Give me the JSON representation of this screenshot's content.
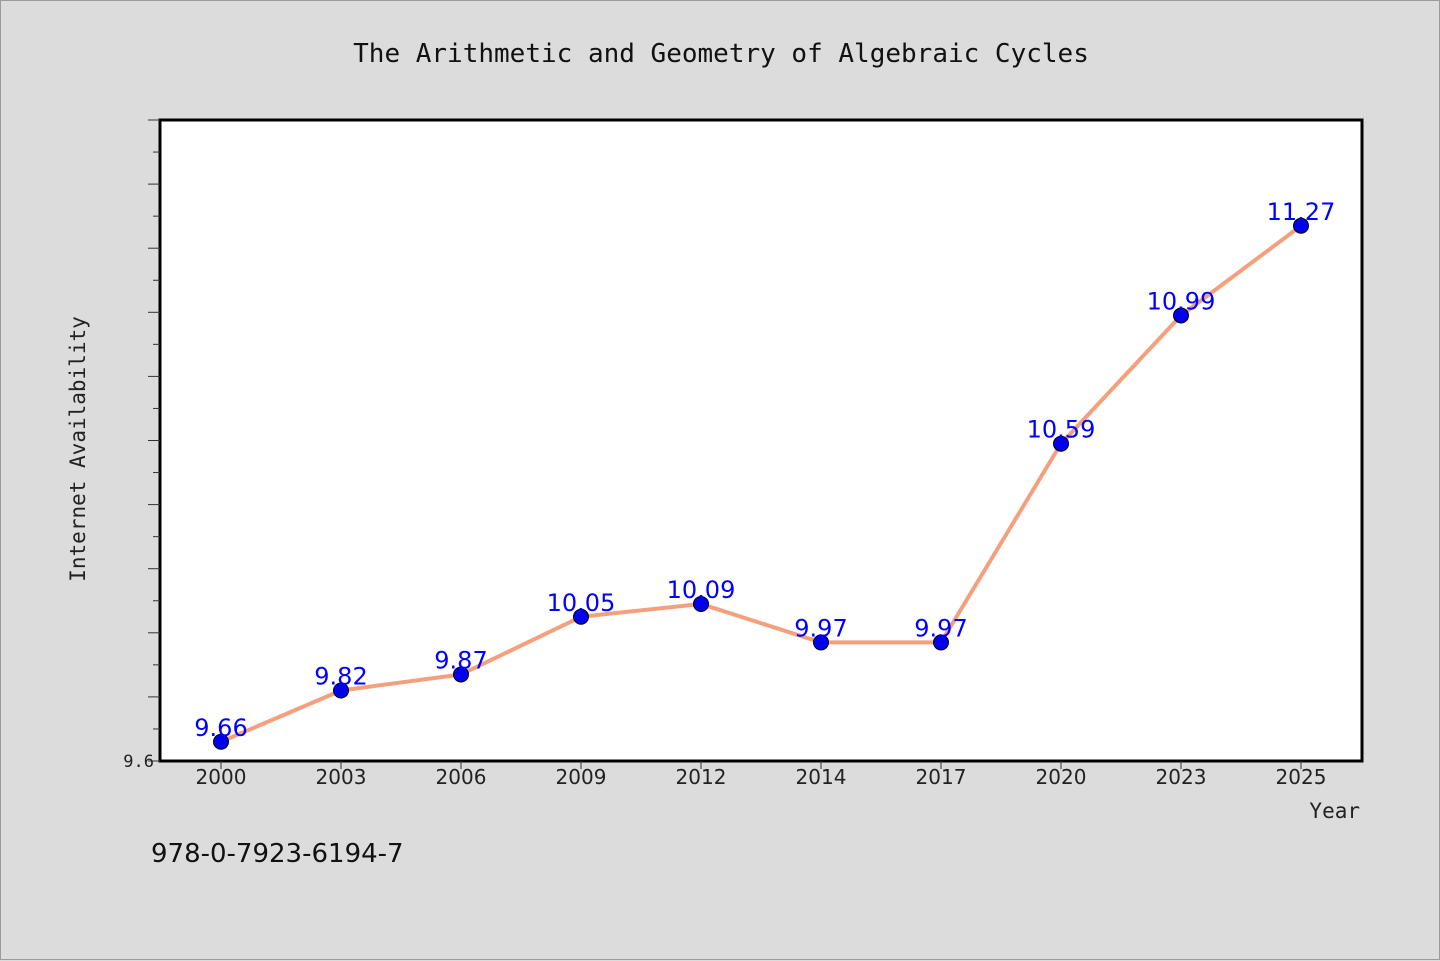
{
  "chart_data": {
    "type": "line",
    "title": "The Arithmetic and Geometry of Algebraic Cycles",
    "xlabel": "Year",
    "ylabel": "Internet Availability",
    "categories": [
      "2000",
      "2003",
      "2006",
      "2009",
      "2012",
      "2014",
      "2017",
      "2020",
      "2023",
      "2025"
    ],
    "series": [
      {
        "values": [
          9.66,
          9.82,
          9.87,
          10.05,
          10.09,
          9.97,
          9.97,
          10.59,
          10.99,
          11.27
        ],
        "data_labels": [
          "9.66",
          "9.82",
          "9.87",
          "10.05",
          "10.09",
          "9.97",
          "9.97",
          "10.59",
          "10.99",
          "11.27"
        ],
        "line_color": "#f4a07c",
        "marker_color": "#0000ee"
      }
    ],
    "ylim": [
      9.6,
      11.6
    ],
    "ytick_labels": [
      "9.6"
    ],
    "grid": false,
    "legend": "none"
  },
  "footer": {
    "isbn": "978-0-7923-6194-7"
  }
}
